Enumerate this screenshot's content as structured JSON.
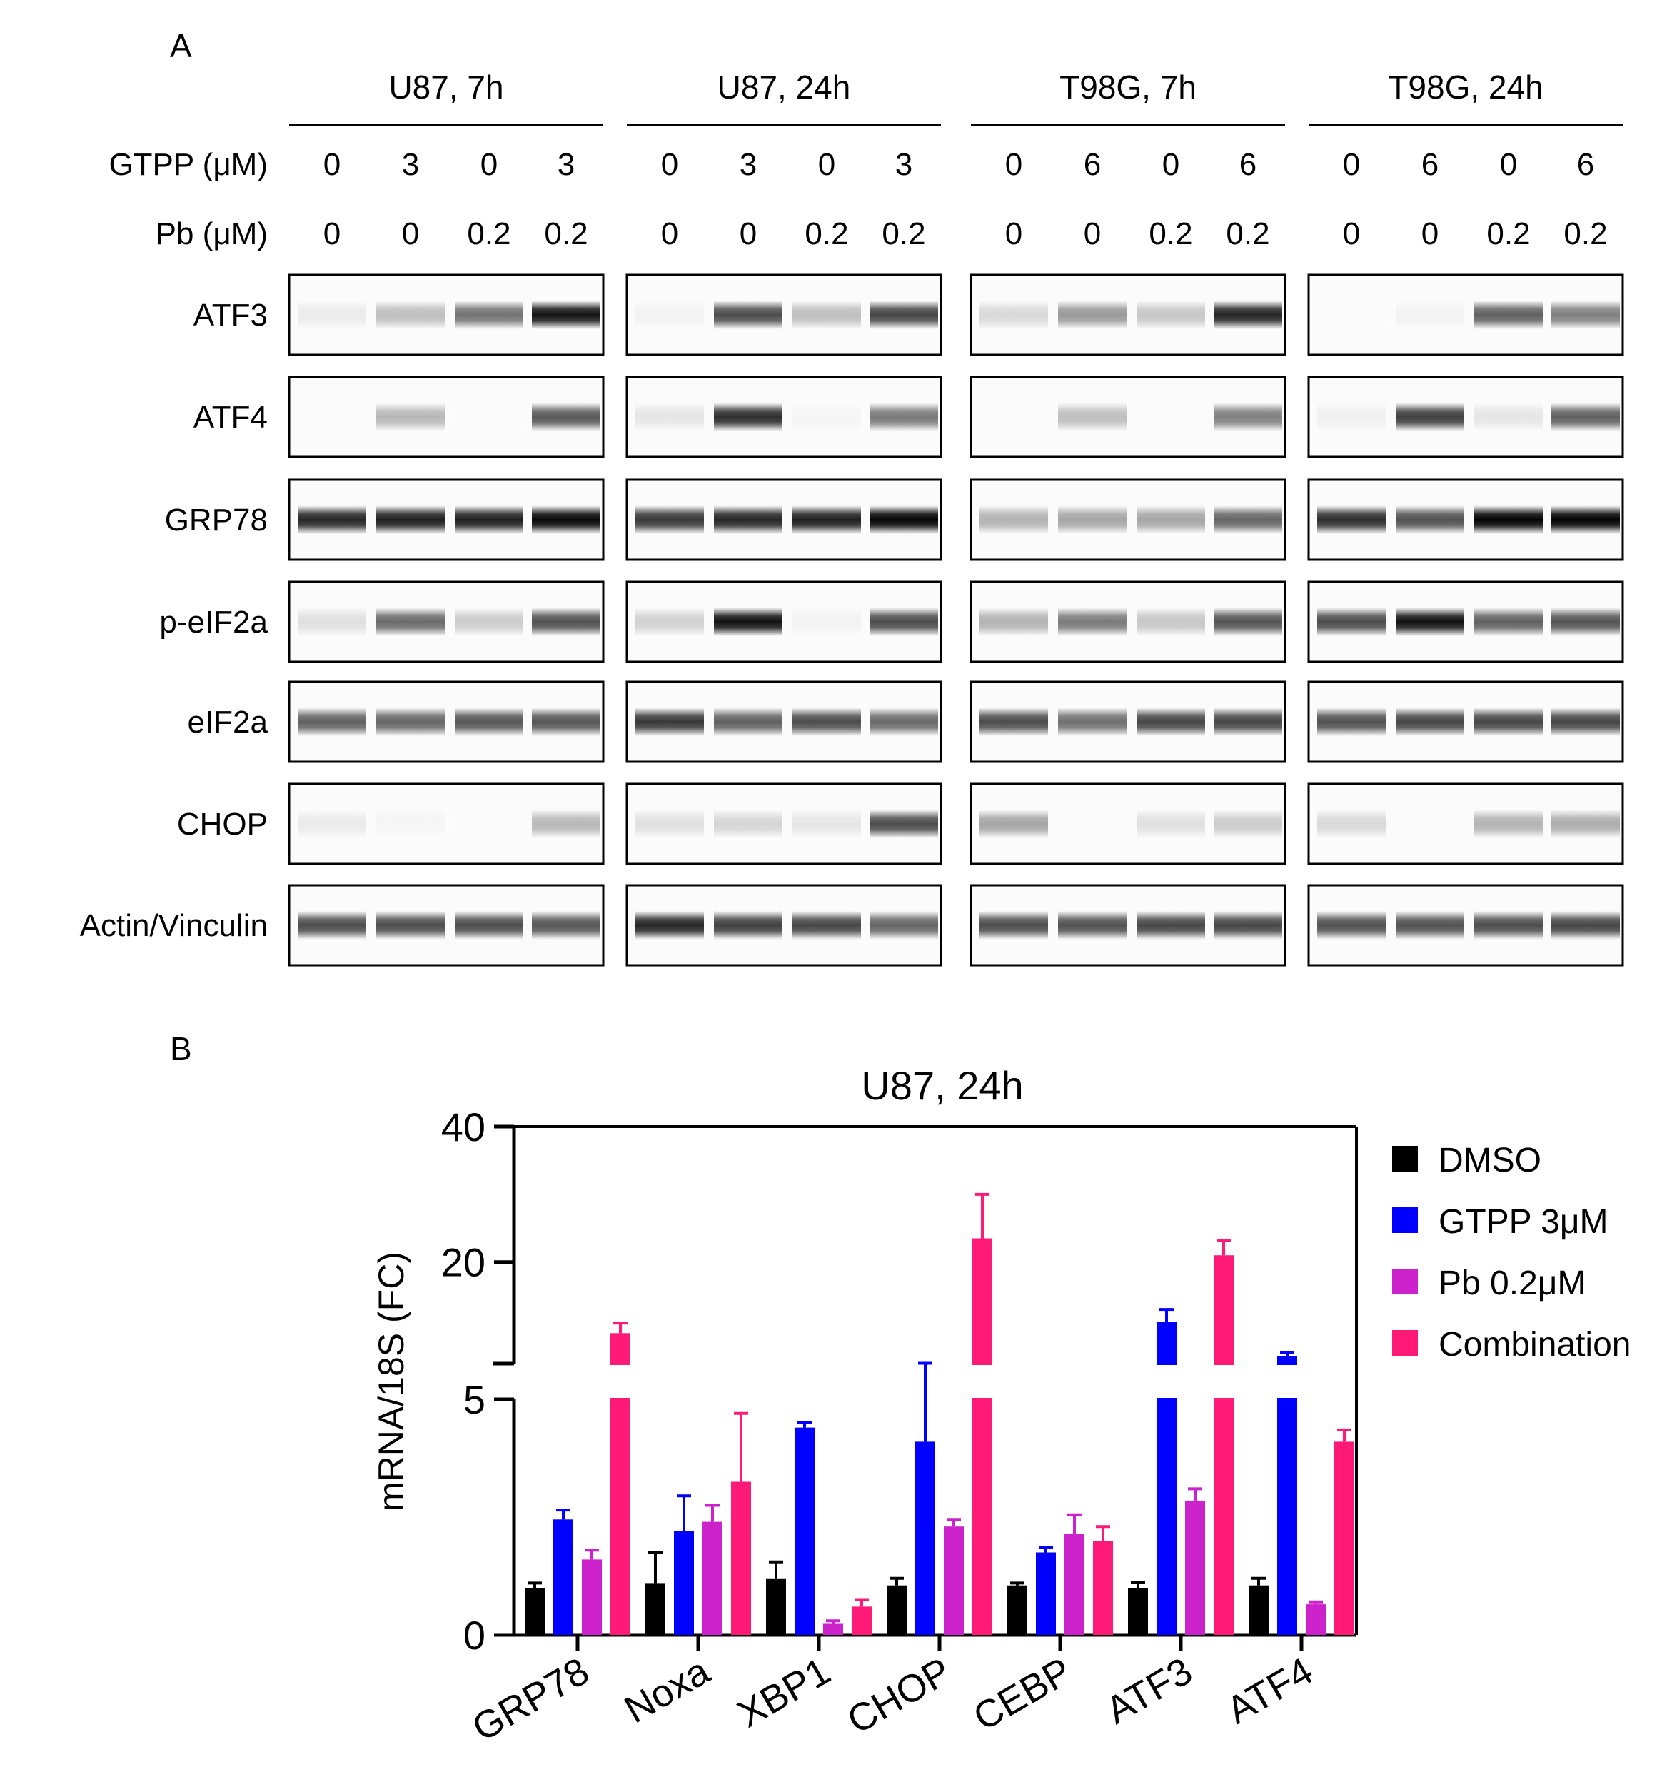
{
  "panel_a": {
    "label": "A",
    "groups": [
      {
        "title": "U87, 7h",
        "gtpp": [
          "0",
          "3",
          "0",
          "3"
        ],
        "pb": [
          "0",
          "0",
          "0.2",
          "0.2"
        ]
      },
      {
        "title": "U87, 24h",
        "gtpp": [
          "0",
          "3",
          "0",
          "3"
        ],
        "pb": [
          "0",
          "0",
          "0.2",
          "0.2"
        ]
      },
      {
        "title": "T98G, 7h",
        "gtpp": [
          "0",
          "6",
          "0",
          "6"
        ],
        "pb": [
          "0",
          "0",
          "0.2",
          "0.2"
        ]
      },
      {
        "title": "T98G, 24h",
        "gtpp": [
          "0",
          "6",
          "0",
          "6"
        ],
        "pb": [
          "0",
          "0",
          "0.2",
          "0.2"
        ]
      }
    ],
    "gtpp_label": "GTPP (μM)",
    "pb_label": "Pb (μM)",
    "blots": [
      {
        "protein": "ATF3",
        "intensity": [
          [
            0.08,
            0.25,
            0.55,
            0.92
          ],
          [
            0.05,
            0.7,
            0.25,
            0.72
          ],
          [
            0.15,
            0.4,
            0.22,
            0.85
          ],
          [
            0.02,
            0.05,
            0.62,
            0.5
          ]
        ]
      },
      {
        "protein": "ATF4",
        "intensity": [
          [
            0.02,
            0.28,
            0.02,
            0.65
          ],
          [
            0.1,
            0.82,
            0.04,
            0.52
          ],
          [
            0.02,
            0.25,
            0.02,
            0.5
          ],
          [
            0.06,
            0.75,
            0.1,
            0.62
          ]
        ]
      },
      {
        "protein": "GRP78",
        "intensity": [
          [
            0.85,
            0.88,
            0.88,
            0.97
          ],
          [
            0.78,
            0.85,
            0.88,
            0.98
          ],
          [
            0.3,
            0.35,
            0.35,
            0.6
          ],
          [
            0.82,
            0.68,
            0.99,
            0.99
          ]
        ]
      },
      {
        "protein": "p-eIF2a",
        "intensity": [
          [
            0.12,
            0.58,
            0.2,
            0.68
          ],
          [
            0.18,
            0.93,
            0.05,
            0.7
          ],
          [
            0.3,
            0.52,
            0.22,
            0.67
          ],
          [
            0.7,
            0.93,
            0.62,
            0.67
          ]
        ]
      },
      {
        "protein": "eIF2a",
        "intensity": [
          [
            0.62,
            0.6,
            0.66,
            0.66
          ],
          [
            0.78,
            0.62,
            0.7,
            0.58
          ],
          [
            0.7,
            0.56,
            0.72,
            0.72
          ],
          [
            0.68,
            0.72,
            0.72,
            0.72
          ]
        ]
      },
      {
        "protein": "CHOP",
        "intensity": [
          [
            0.08,
            0.04,
            0.02,
            0.28
          ],
          [
            0.12,
            0.16,
            0.1,
            0.7
          ],
          [
            0.35,
            0.02,
            0.12,
            0.2
          ],
          [
            0.15,
            0.02,
            0.3,
            0.32
          ]
        ]
      },
      {
        "protein": "Actin/Vinculin",
        "intensity": [
          [
            0.7,
            0.7,
            0.7,
            0.66
          ],
          [
            0.85,
            0.75,
            0.72,
            0.6
          ],
          [
            0.7,
            0.68,
            0.72,
            0.72
          ],
          [
            0.68,
            0.68,
            0.7,
            0.72
          ]
        ]
      }
    ]
  },
  "panel_b": {
    "label": "B",
    "chart_data": {
      "type": "bar",
      "title": "U87, 24h",
      "ylabel": "mRNA/18S (FC)",
      "xlabel": "",
      "categories": [
        "GRP78",
        "Noxa",
        "XBP1",
        "CHOP",
        "CEBP",
        "ATF3",
        "ATF4"
      ],
      "y_axis": {
        "broken": true,
        "lower_segment": {
          "range": [
            0,
            5
          ],
          "ticks": [
            "0",
            "5"
          ]
        },
        "upper_segment": {
          "range": [
            5,
            40
          ],
          "ticks": [
            "20",
            "40"
          ]
        }
      },
      "series": [
        {
          "name": "DMSO",
          "color": "#000000",
          "values": [
            1.0,
            1.1,
            1.2,
            1.05,
            1.05,
            1.0,
            1.05
          ],
          "errors": [
            0.1,
            0.65,
            0.35,
            0.15,
            0.05,
            0.12,
            0.15
          ]
        },
        {
          "name": "GTPP 3μM",
          "color": "#0000ff",
          "values": [
            2.45,
            2.2,
            4.4,
            4.1,
            1.75,
            11.2,
            6.1
          ],
          "errors": [
            0.2,
            0.75,
            0.1,
            0.95,
            0.1,
            1.8,
            0.5
          ]
        },
        {
          "name": "Pb 0.2μM",
          "color": "#cc22cc",
          "values": [
            1.6,
            2.4,
            0.25,
            2.3,
            2.15,
            2.85,
            0.65
          ],
          "errors": [
            0.2,
            0.35,
            0.05,
            0.15,
            0.4,
            0.25,
            0.05
          ]
        },
        {
          "name": "Combination",
          "color": "#ff1a78",
          "values": [
            9.5,
            3.25,
            0.6,
            23.5,
            2.0,
            21.0,
            4.1
          ],
          "errors": [
            1.5,
            1.45,
            0.15,
            6.5,
            0.3,
            2.2,
            0.25
          ]
        }
      ],
      "legend_position": "right",
      "grid": false
    }
  }
}
